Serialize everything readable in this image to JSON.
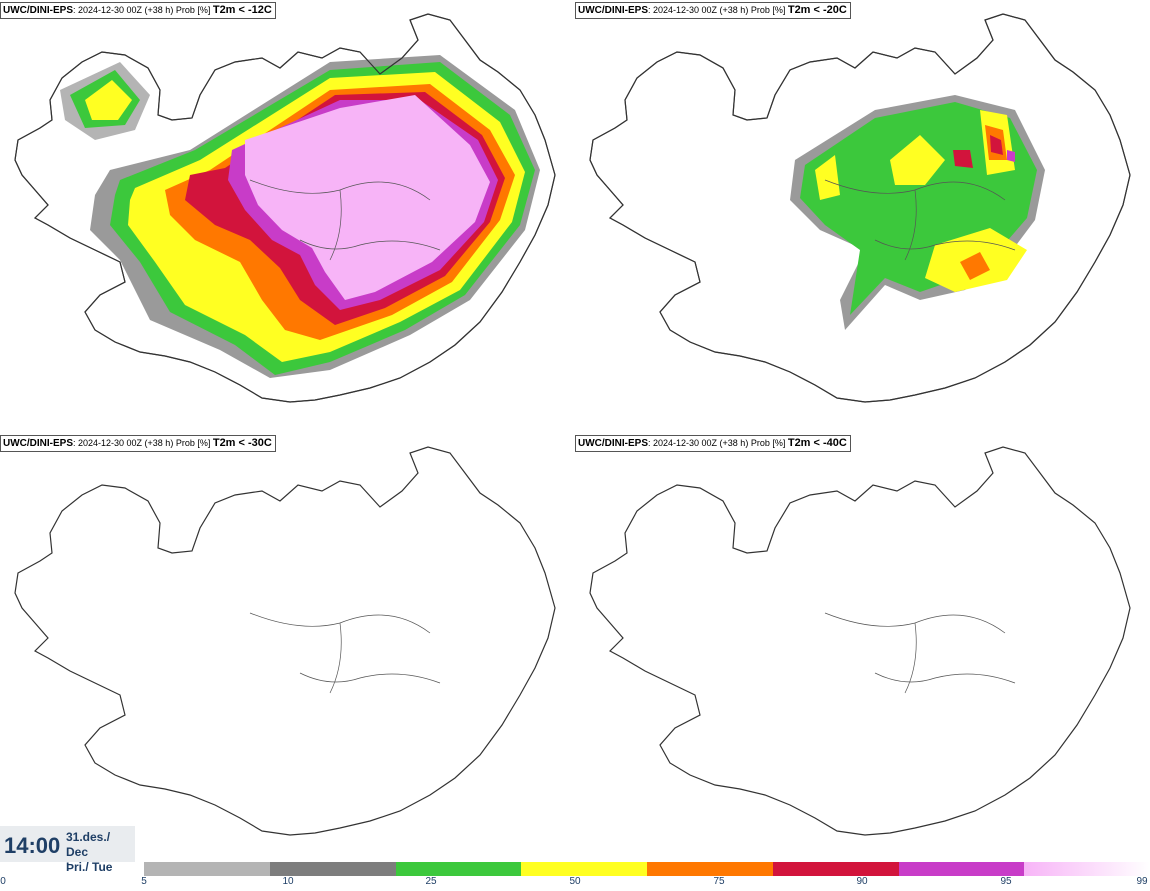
{
  "panels": [
    {
      "model": "UWC/DINI-EPS",
      "run": ": 2024-12-30 00Z (+38 h) Prob [%] ",
      "threshold": "T2m < -12C"
    },
    {
      "model": "UWC/DINI-EPS",
      "run": ": 2024-12-30 00Z (+38 h) Prob [%] ",
      "threshold": "T2m < -20C"
    },
    {
      "model": "UWC/DINI-EPS",
      "run": ": 2024-12-30 00Z (+38 h) Prob [%] ",
      "threshold": "T2m < -30C"
    },
    {
      "model": "UWC/DINI-EPS",
      "run": ": 2024-12-30 00Z (+38 h) Prob [%] ",
      "threshold": "T2m < -40C"
    }
  ],
  "valid_time": {
    "time": "14:00",
    "date_line1": "31.des./ Dec",
    "date_line2": "Þri./ Tue"
  },
  "legend": {
    "ticks": [
      "0",
      "5",
      "10",
      "25",
      "50",
      "75",
      "90",
      "95",
      "99"
    ],
    "colors": [
      "#b4b4b4",
      "#7d7d7d",
      "#3cc83c",
      "#ffff22",
      "#ff7800",
      "#d2143c",
      "#c83cc8",
      "#f7b4f7"
    ]
  }
}
